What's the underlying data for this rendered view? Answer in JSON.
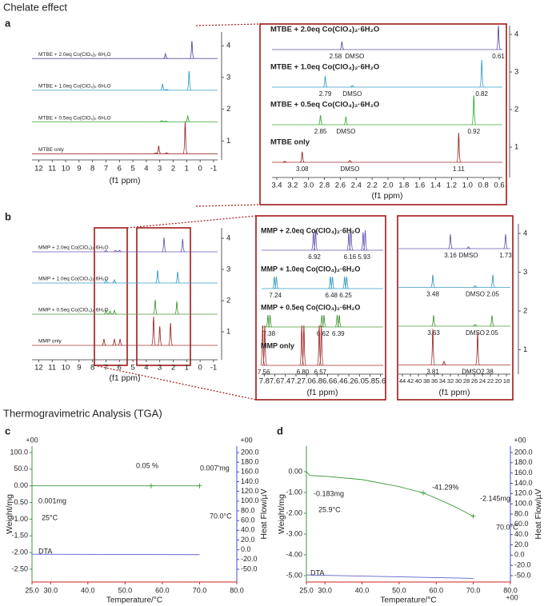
{
  "headings": {
    "chelate": "Chelate effect",
    "tga": "Thermogravimetric Analysis (TGA)"
  },
  "chart_data": [
    {
      "type": "nmr",
      "label": "a",
      "xlabel": "(f1 ppm)",
      "xlim": [
        12.5,
        -1.3
      ],
      "xticks": [
        12,
        11,
        10,
        9,
        8,
        7,
        6,
        5,
        4,
        3,
        2,
        1,
        0,
        -1
      ],
      "yticks": [
        1,
        2,
        3,
        4
      ],
      "series": [
        {
          "name": "MTBE + 2.0eq Co(ClO₄)₂·6H₂O",
          "color": "#5b4fa0",
          "peaks": [
            2.58,
            0.61
          ],
          "intensities": [
            0.15,
            0.55
          ]
        },
        {
          "name": "MTBE + 1.0eq Co(ClO₄)₂·6H₂O",
          "color": "#3a9ec6",
          "peaks": [
            2.79,
            2.5,
            0.82
          ],
          "intensities": [
            0.2,
            0.03,
            0.6
          ]
        },
        {
          "name": "MTBE + 0.5eq Co(ClO₄)₂·6H₂O",
          "color": "#3caa3c",
          "peaks": [
            2.85,
            2.58,
            0.92
          ],
          "intensities": [
            0.05,
            0.03,
            0.2
          ]
        },
        {
          "name": "MTBE only",
          "color": "#9c2b2b",
          "peaks": [
            3.3,
            3.08,
            2.5,
            1.11
          ],
          "intensities": [
            0.02,
            0.25,
            0.03,
            1
          ]
        }
      ]
    },
    {
      "type": "nmr",
      "xlabel": "(f1 ppm)",
      "xlim": [
        3.46,
        0.56
      ],
      "xticks": [
        3.4,
        3.2,
        {
          "value": 3,
          "label": "3.0"
        },
        2.8,
        2.6,
        2.4,
        2.2,
        {
          "value": 2,
          "label": "2.0"
        },
        1.8,
        1.6,
        1.4,
        1.2,
        {
          "value": 1,
          "label": "1.0"
        },
        0.8,
        0.6
      ],
      "yticks": [
        1,
        2,
        3,
        4
      ],
      "series": [
        {
          "name": "MTBE + 2.0eq Co(ClO₄)₂·6H₂O",
          "color": "#5b4fa0",
          "peaks": [
            2.58,
            0.61
          ],
          "intensities": [
            0.25,
            0.75
          ],
          "annotations": [
            {
              "x": 2.66,
              "text": "2.58"
            },
            {
              "x": 2.42,
              "text": "DMSO"
            },
            {
              "x": 0.61,
              "text": "0.61"
            }
          ]
        },
        {
          "name": "MTBE + 1.0eq Co(ClO₄)₂·6H₂O",
          "color": "#3a9ec6",
          "peaks": [
            2.79,
            2.45,
            0.82
          ],
          "intensities": [
            0.35,
            0.05,
            0.85
          ],
          "annotations": [
            {
              "x": 2.79,
              "text": "2.79"
            },
            {
              "x": 2.45,
              "text": "DMSO"
            },
            {
              "x": 0.82,
              "text": "0.82"
            }
          ]
        },
        {
          "name": "MTBE + 0.5eq Co(ClO₄)₂·6H₂O",
          "color": "#3caa3c",
          "peaks": [
            2.85,
            2.53,
            0.92
          ],
          "intensities": [
            0.3,
            0.25,
            0.92
          ],
          "annotations": [
            {
              "x": 2.85,
              "text": "2.85"
            },
            {
              "x": 2.53,
              "text": "DMSO"
            },
            {
              "x": 0.92,
              "text": "0.92"
            }
          ]
        },
        {
          "name": "MTBE only",
          "color": "#9c2b2b",
          "peaks": [
            3.3,
            3.08,
            2.48,
            1.11
          ],
          "intensities": [
            0.03,
            0.33,
            0.06,
            0.92
          ],
          "annotations": [
            {
              "x": 3.08,
              "text": "3.08"
            },
            {
              "x": 2.48,
              "text": "DMSO"
            },
            {
              "x": 1.11,
              "text": "1.11"
            }
          ]
        }
      ]
    },
    {
      "type": "nmr",
      "label": "b",
      "xlabel": "(f1 ppm)",
      "xlim": [
        12.5,
        -1.3
      ],
      "xticks": [
        12,
        11,
        10,
        9,
        8,
        7,
        6,
        5,
        4,
        3,
        2,
        1,
        0,
        -1
      ],
      "yticks": [
        1,
        2,
        3,
        4
      ],
      "series": [
        {
          "name": "MMP + 2.0eq Co(ClO₄)₂·6H₂O",
          "color": "#6a5ab0",
          "peaks": [
            7.0,
            6.3,
            6.0,
            2.68,
            1.3
          ],
          "intensities": [
            0.05,
            0.05,
            0.05,
            0.45,
            0.4
          ]
        },
        {
          "name": "MMP + 1.0eq Co(ClO₄)₂·6H₂O",
          "color": "#3a9ec6",
          "peaks": [
            7.0,
            6.37,
            3.16,
            1.67
          ],
          "intensities": [
            0.1,
            0.1,
            0.4,
            0.35
          ]
        },
        {
          "name": "MMP + 0.5eq Co(ClO₄)₂·6H₂O",
          "color": "#4a9a3a",
          "peaks": [
            7.0,
            6.7,
            6.37,
            3.34,
            1.73
          ],
          "intensities": [
            0.12,
            0.1,
            0.12,
            0.45,
            0.4
          ]
        },
        {
          "name": "MMP only",
          "color": "#a03030",
          "peaks": [
            7.15,
            6.37,
            5.95,
            3.46,
            3.0,
            2.2
          ],
          "intensities": [
            0.2,
            0.2,
            0.2,
            0.9,
            0.6,
            0.7
          ]
        }
      ]
    },
    {
      "type": "nmr",
      "xlabel": "(f1 ppm)",
      "xlim": [
        7.85,
        5.55
      ],
      "xticks": [
        7.8,
        7.6,
        7.4,
        7.2,
        {
          "value": 7,
          "label": "7.0"
        },
        6.8,
        6.6,
        6.4,
        6.2,
        {
          "value": 6,
          "label": "6.0"
        },
        5.8,
        5.6
      ],
      "series": [
        {
          "name": "MMP + 2.0eq Co(ClO₄)₂·6H₂O",
          "color": "#6a5ab0",
          "peaks": [
            6.87,
            6.83,
            6.2,
            6.16,
            5.93,
            5.89
          ],
          "intensities": [
            0.45,
            0.5,
            0.45,
            0.5,
            0.45,
            0.5
          ],
          "annotations": [
            {
              "x": 6.85,
              "text": "6.92"
            },
            {
              "x": 6.18,
              "text": "6.16"
            },
            {
              "x": 5.91,
              "text": "5.93"
            }
          ]
        },
        {
          "name": "MMP + 1.0eq Co(ClO₄)₂·6H₂O",
          "color": "#3a9ec6",
          "peaks": [
            7.61,
            7.57,
            6.55,
            6.51,
            6.28,
            6.24
          ],
          "intensities": [
            0.3,
            0.3,
            0.3,
            0.3,
            0.3,
            0.3
          ],
          "annotations": [
            {
              "x": 7.59,
              "text": "7.24"
            },
            {
              "x": 6.53,
              "text": "6.48"
            },
            {
              "x": 6.26,
              "text": "6.25"
            }
          ]
        },
        {
          "name": "MMP + 0.5eq Co(ClO₄)₂·6H₂O",
          "color": "#4a9a3a",
          "peaks": [
            7.73,
            7.69,
            6.71,
            6.67,
            6.42,
            6.38
          ],
          "intensities": [
            0.3,
            0.3,
            0.3,
            0.3,
            0.3,
            0.3
          ],
          "annotations": [
            {
              "x": 7.71,
              "text": "7.38"
            },
            {
              "x": 6.69,
              "text": "6.62"
            },
            {
              "x": 6.4,
              "text": "6.39"
            }
          ]
        },
        {
          "name": "MMP only",
          "color": "#a03030",
          "peaks": [
            7.83,
            7.79,
            7.09,
            7.05,
            6.76,
            6.72
          ],
          "intensities": [
            1,
            1,
            1,
            1,
            1,
            1
          ],
          "annotations": [
            {
              "x": 7.81,
              "text": "7.56"
            },
            {
              "x": 7.07,
              "text": "6.80"
            },
            {
              "x": 6.74,
              "text": "6.57"
            }
          ]
        }
      ]
    },
    {
      "type": "nmr",
      "xlabel": "(f1 ppm)",
      "xlim": [
        45,
        17
      ],
      "xticks": [
        44,
        42,
        40,
        38,
        36,
        34,
        32,
        30,
        28,
        26,
        24,
        22,
        20,
        18
      ],
      "yticks": [
        1,
        2,
        3,
        4
      ],
      "series": [
        {
          "color": "#6a5ab0",
          "peaks": [
            32,
            27.5,
            18.2
          ],
          "intensities": [
            0.4,
            0.05,
            0.4
          ],
          "annotations": [
            {
              "x": 32,
              "text": "3.16"
            },
            {
              "x": 27.5,
              "text": "DMSO"
            },
            {
              "x": 18.2,
              "text": "1.73"
            }
          ]
        },
        {
          "color": "#3a9ec6",
          "peaks": [
            36.4,
            25.8,
            21.4
          ],
          "intensities": [
            0.35,
            0.05,
            0.35
          ],
          "annotations": [
            {
              "x": 36.4,
              "text": "3.48"
            },
            {
              "x": 25.8,
              "text": "DMSO"
            },
            {
              "x": 21.4,
              "text": "2.05"
            }
          ]
        },
        {
          "color": "#4a9a3a",
          "peaks": [
            36.2,
            25.8,
            21.6
          ],
          "intensities": [
            0.3,
            0.05,
            0.3
          ],
          "annotations": [
            {
              "x": 36.2,
              "text": "3.63"
            },
            {
              "x": 25.8,
              "text": "DMSO"
            },
            {
              "x": 21.6,
              "text": "2.05"
            }
          ]
        },
        {
          "color": "#a03030",
          "peaks": [
            36.4,
            33.6,
            25.2
          ],
          "intensities": [
            1,
            0.1,
            0.9
          ],
          "annotations": [
            {
              "x": 36.4,
              "text": "3.81"
            },
            {
              "x": 25.2,
              "text": "DMSO2.38"
            }
          ]
        }
      ]
    },
    {
      "type": "tga",
      "label": "c",
      "xlabel": "Temperature/°C",
      "ylabel": "Weight/mg",
      "y2label": "Heat Flow/µV",
      "ytop": "+00",
      "y2top": "+00",
      "xlim": [
        25,
        80
      ],
      "xticks": [
        {
          "value": 25,
          "label": "25.0"
        },
        {
          "value": 30,
          "label": "30.0"
        },
        {
          "value": 40,
          "label": "40.0"
        },
        {
          "value": 50,
          "label": "50.0"
        },
        {
          "value": 60,
          "label": "60.0"
        },
        {
          "value": 70,
          "label": "70.0"
        },
        {
          "value": 80,
          "label": "80.0"
        }
      ],
      "yticks": [
        {
          "value": 100,
          "label": "100.0"
        },
        {
          "value": 50,
          "label": "50.0"
        },
        {
          "value": 0,
          "label": "0.00"
        },
        {
          "value": -0.5,
          "label": "-0.50"
        },
        {
          "value": -1,
          "label": "-1.00"
        },
        {
          "value": -1.5,
          "label": "-1.50"
        },
        {
          "value": -2,
          "label": "-2.00"
        },
        {
          "value": -2.5,
          "label": "-2.50"
        }
      ],
      "y2ticks": [
        {
          "value": 200,
          "label": "200.0"
        },
        {
          "value": 180,
          "label": "180.0"
        },
        {
          "value": 160,
          "label": "160.0"
        },
        {
          "value": 140,
          "label": "140.0"
        },
        {
          "value": 120,
          "label": "120.0"
        },
        {
          "value": 100,
          "label": "100.0"
        },
        {
          "value": 80,
          "label": "80.0"
        },
        {
          "value": 60,
          "label": "60.0"
        },
        {
          "value": 40,
          "label": "40.0"
        },
        {
          "value": 20,
          "label": "20.0"
        },
        {
          "value": 0,
          "label": "0.0"
        },
        {
          "value": -20,
          "label": "-20.0"
        },
        {
          "value": -50,
          "label": "-50.0"
        }
      ],
      "series": [
        {
          "color": "#3c9a3c",
          "x": [
            25,
            70
          ],
          "values": [
            0,
            0
          ],
          "markers": [
            57,
            70
          ]
        },
        {
          "color": "#6060d0",
          "axis": "y2",
          "x": [
            25,
            70
          ],
          "values": [
            -9,
            -10
          ]
        }
      ],
      "annotations": [
        {
          "text": "0.05 %",
          "color": "#3c9a3c"
        },
        {
          "text": "0.007'mg",
          "color": "#3c9a3c"
        },
        {
          "text": "0.001mg",
          "color": "#d02020"
        },
        {
          "text": "25°C",
          "color": "#d02020"
        },
        {
          "text": "70.0°C",
          "color": "#3c9a3c"
        },
        {
          "text": "DTA",
          "color": "#4b4bc8"
        }
      ]
    },
    {
      "type": "tga",
      "label": "d",
      "xlabel": "Temperature/°C",
      "ylabel": "Weight/mg",
      "y2label": "Heat Flow/µV",
      "y2top": "+00",
      "xend": "+00",
      "xlim": [
        25,
        80
      ],
      "xticks": [
        {
          "value": 25,
          "label": "25.0"
        },
        {
          "value": 30,
          "label": "30.0"
        },
        {
          "value": 40,
          "label": "40.0"
        },
        {
          "value": 50,
          "label": "50.0"
        },
        {
          "value": 60,
          "label": "60.0"
        },
        {
          "value": 70,
          "label": "70.0"
        },
        {
          "value": 80,
          "label": "80.0"
        }
      ],
      "yticks": [
        {
          "value": 0,
          "label": "0.00"
        },
        {
          "value": -1,
          "label": "-1.00"
        },
        {
          "value": -2,
          "label": "-2.00"
        },
        {
          "value": -3,
          "label": "-3.00"
        },
        {
          "value": -4,
          "label": "-4.00"
        },
        {
          "value": -5,
          "label": "-5.00"
        }
      ],
      "y2ticks": [
        {
          "value": 200,
          "label": "200.0"
        },
        {
          "value": 180,
          "label": "180.0"
        },
        {
          "value": 160,
          "label": "160.0"
        },
        {
          "value": 140,
          "label": "140.0"
        },
        {
          "value": 120,
          "label": "120.0"
        },
        {
          "value": 100,
          "label": "100.0"
        },
        {
          "value": 80,
          "label": "80.0"
        },
        {
          "value": 60,
          "label": "60.0"
        },
        {
          "value": 40,
          "label": "40.0"
        },
        {
          "value": 20,
          "label": "20.0"
        },
        {
          "value": 0,
          "label": "0.0"
        },
        {
          "value": -20,
          "label": "-20.0"
        },
        {
          "value": -50,
          "label": "-50.0"
        }
      ],
      "series": [
        {
          "color": "#3c9a3c",
          "x": [
            25,
            25.9,
            30,
            40,
            50,
            56.5,
            60,
            65,
            70
          ],
          "values": [
            0,
            -0.183,
            -0.22,
            -0.38,
            -0.72,
            -1.02,
            -1.28,
            -1.68,
            -2.145
          ],
          "markers": [
            56.5,
            70
          ]
        },
        {
          "color": "#6060d0",
          "axis": "y2",
          "x": [
            25,
            70
          ],
          "values": [
            -48,
            -58
          ]
        }
      ],
      "annotations": [
        {
          "text": "-0.183mg",
          "color": "#d02020"
        },
        {
          "text": "25.9°C",
          "color": "#d02020"
        },
        {
          "text": "-41.29%",
          "color": "#3c9a3c"
        },
        {
          "text": "-2.145mg",
          "color": "#3c9a3c"
        },
        {
          "text": "70.0°C",
          "color": "#3c9a3c"
        },
        {
          "text": "DTA",
          "color": "#4b4bc8"
        }
      ]
    }
  ]
}
